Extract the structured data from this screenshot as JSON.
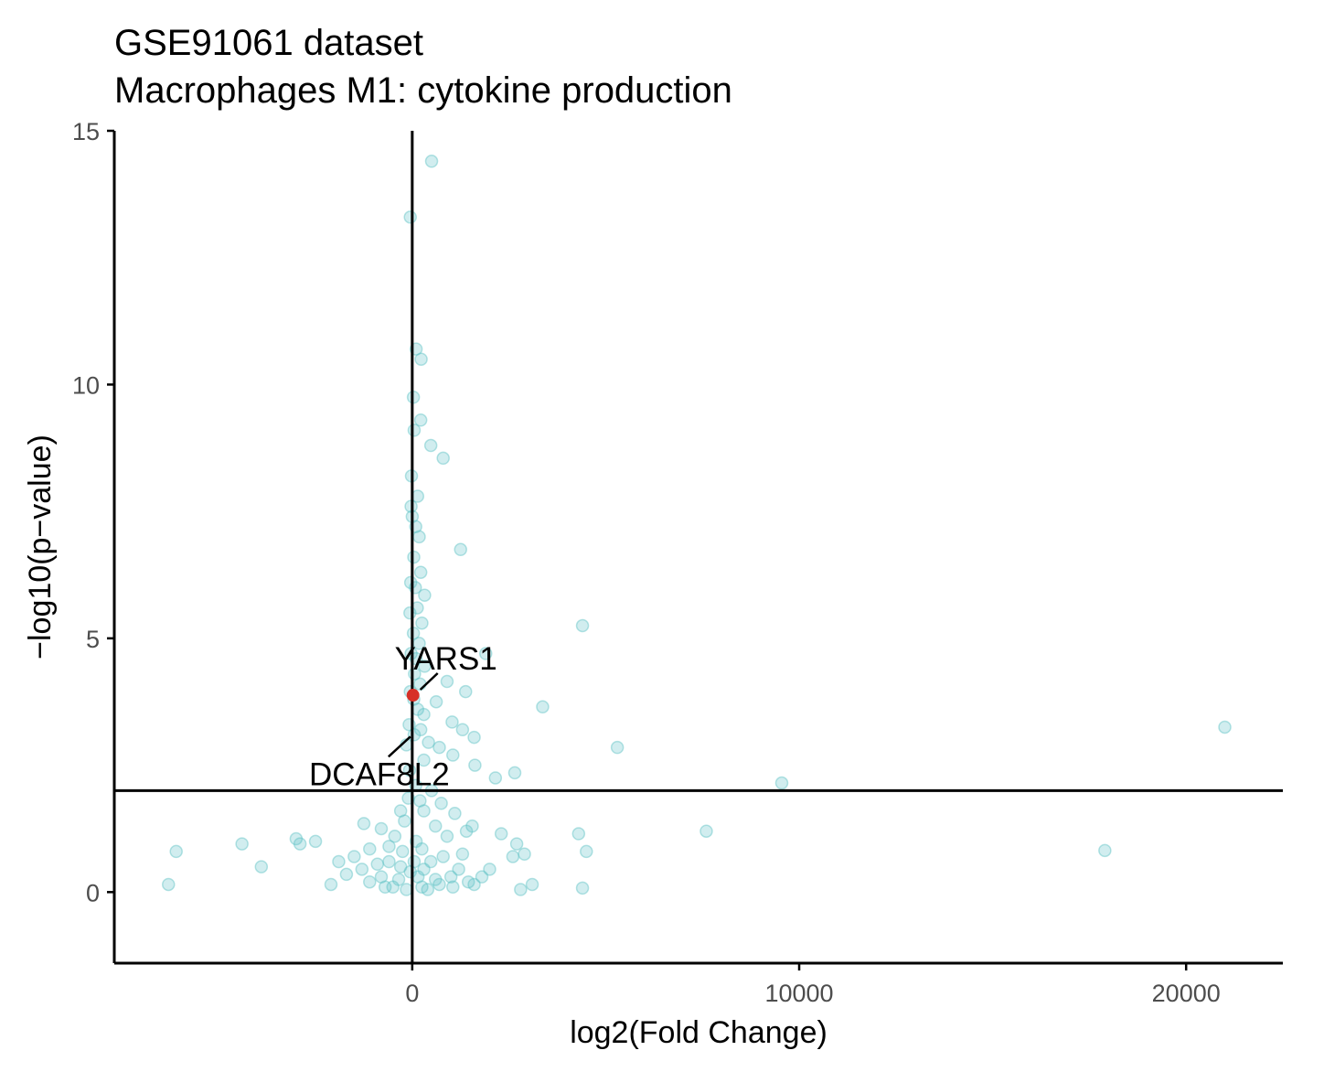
{
  "chart_data": {
    "type": "scatter",
    "title": "GSE91061 dataset",
    "subtitle": "Macrophages M1: cytokine production",
    "xlabel": "log2(Fold Change)",
    "ylabel": "−log10(p−value)",
    "xlim": [
      -7700,
      22500
    ],
    "ylim": [
      -1.4,
      15
    ],
    "x_ticks": [
      0,
      10000,
      20000
    ],
    "x_tick_labels": [
      "0",
      "10000",
      "20000"
    ],
    "y_ticks": [
      0,
      5,
      10,
      15
    ],
    "y_tick_labels": [
      "0",
      "5",
      "10",
      "15"
    ],
    "grid": false,
    "legend": "none",
    "reference_lines": {
      "x": 0,
      "y": 2
    },
    "colors": {
      "points": "#5bc0c4",
      "highlight": "#d73027",
      "axis": "#000000",
      "tick_text": "#4d4d4d"
    },
    "series": [
      {
        "points": [
          [
            500,
            14.4
          ],
          [
            -50,
            13.3
          ],
          [
            100,
            10.7
          ],
          [
            230,
            10.5
          ],
          [
            30,
            9.75
          ],
          [
            220,
            9.3
          ],
          [
            50,
            9.1
          ],
          [
            480,
            8.8
          ],
          [
            800,
            8.55
          ],
          [
            -20,
            8.2
          ],
          [
            140,
            7.8
          ],
          [
            -30,
            7.6
          ],
          [
            0,
            7.4
          ],
          [
            90,
            7.2
          ],
          [
            180,
            7.0
          ],
          [
            1250,
            6.75
          ],
          [
            40,
            6.6
          ],
          [
            220,
            6.3
          ],
          [
            -40,
            6.1
          ],
          [
            80,
            6.0
          ],
          [
            320,
            5.85
          ],
          [
            130,
            5.6
          ],
          [
            -60,
            5.5
          ],
          [
            250,
            5.3
          ],
          [
            4400,
            5.25
          ],
          [
            30,
            5.1
          ],
          [
            180,
            4.9
          ],
          [
            -30,
            4.7
          ],
          [
            100,
            4.6
          ],
          [
            320,
            4.45
          ],
          [
            1900,
            4.7
          ],
          [
            60,
            4.3
          ],
          [
            200,
            4.1
          ],
          [
            900,
            4.15
          ],
          [
            -50,
            3.95
          ],
          [
            1380,
            3.95
          ],
          [
            40,
            3.8
          ],
          [
            620,
            3.75
          ],
          [
            140,
            3.6
          ],
          [
            3370,
            3.65
          ],
          [
            300,
            3.5
          ],
          [
            -80,
            3.3
          ],
          [
            1030,
            3.35
          ],
          [
            220,
            3.2
          ],
          [
            1300,
            3.2
          ],
          [
            50,
            3.1
          ],
          [
            1600,
            3.05
          ],
          [
            420,
            2.95
          ],
          [
            -150,
            2.9
          ],
          [
            700,
            2.85
          ],
          [
            1050,
            2.7
          ],
          [
            5300,
            2.85
          ],
          [
            300,
            2.6
          ],
          [
            1620,
            2.5
          ],
          [
            2650,
            2.35
          ],
          [
            -70,
            2.4
          ],
          [
            2150,
            2.25
          ],
          [
            9550,
            2.15
          ],
          [
            21000,
            3.25
          ],
          [
            90,
            2.1
          ],
          [
            500,
            2.0
          ],
          [
            -100,
            1.85
          ],
          [
            200,
            1.8
          ],
          [
            750,
            1.75
          ],
          [
            -300,
            1.6
          ],
          [
            1100,
            1.55
          ],
          [
            -1250,
            1.35
          ],
          [
            -800,
            1.25
          ],
          [
            1550,
            1.3
          ],
          [
            1400,
            1.2
          ],
          [
            -3000,
            1.05
          ],
          [
            -2500,
            1.0
          ],
          [
            -4400,
            0.95
          ],
          [
            -6100,
            0.8
          ],
          [
            -2900,
            0.95
          ],
          [
            2300,
            1.15
          ],
          [
            4300,
            1.15
          ],
          [
            7600,
            1.2
          ],
          [
            2700,
            0.95
          ],
          [
            4500,
            0.8
          ],
          [
            17900,
            0.82
          ],
          [
            -3900,
            0.5
          ],
          [
            -1500,
            0.7
          ],
          [
            -1100,
            0.85
          ],
          [
            -600,
            0.9
          ],
          [
            800,
            0.7
          ],
          [
            1300,
            0.75
          ],
          [
            2600,
            0.7
          ],
          [
            2900,
            0.75
          ],
          [
            -6300,
            0.15
          ],
          [
            -2100,
            0.15
          ],
          [
            -1700,
            0.35
          ],
          [
            -800,
            0.3
          ],
          [
            -300,
            0.5
          ],
          [
            300,
            0.45
          ],
          [
            600,
            0.25
          ],
          [
            1450,
            0.2
          ],
          [
            1800,
            0.3
          ],
          [
            2800,
            0.05
          ],
          [
            3100,
            0.15
          ],
          [
            4400,
            0.08
          ],
          [
            -1300,
            0.45
          ],
          [
            -1100,
            0.2
          ],
          [
            -500,
            0.1
          ],
          [
            250,
            0.1
          ],
          [
            700,
            0.15
          ],
          [
            1050,
            0.1
          ],
          [
            -150,
            0.05
          ],
          [
            400,
            0.05
          ],
          [
            150,
            0.3
          ],
          [
            -350,
            0.25
          ],
          [
            480,
            0.6
          ],
          [
            -600,
            0.6
          ],
          [
            1200,
            0.45
          ],
          [
            2000,
            0.45
          ],
          [
            -900,
            0.55
          ],
          [
            900,
            1.1
          ],
          [
            -200,
            1.4
          ],
          [
            300,
            1.6
          ],
          [
            600,
            1.3
          ],
          [
            -450,
            1.1
          ],
          [
            100,
            1.0
          ],
          [
            -250,
            0.8
          ],
          [
            250,
            0.85
          ],
          [
            -50,
            0.4
          ],
          [
            50,
            0.6
          ],
          [
            -700,
            0.1
          ],
          [
            1000,
            0.3
          ],
          [
            1600,
            0.15
          ],
          [
            -1900,
            0.6
          ]
        ]
      },
      {
        "highlight": true,
        "points": [
          [
            20,
            3.88
          ]
        ]
      }
    ],
    "annotations": [
      {
        "text": "YARS1",
        "x": 20,
        "y": 3.88
      },
      {
        "text": "DCAF8L2",
        "x": 0,
        "y": 3.1
      }
    ]
  }
}
